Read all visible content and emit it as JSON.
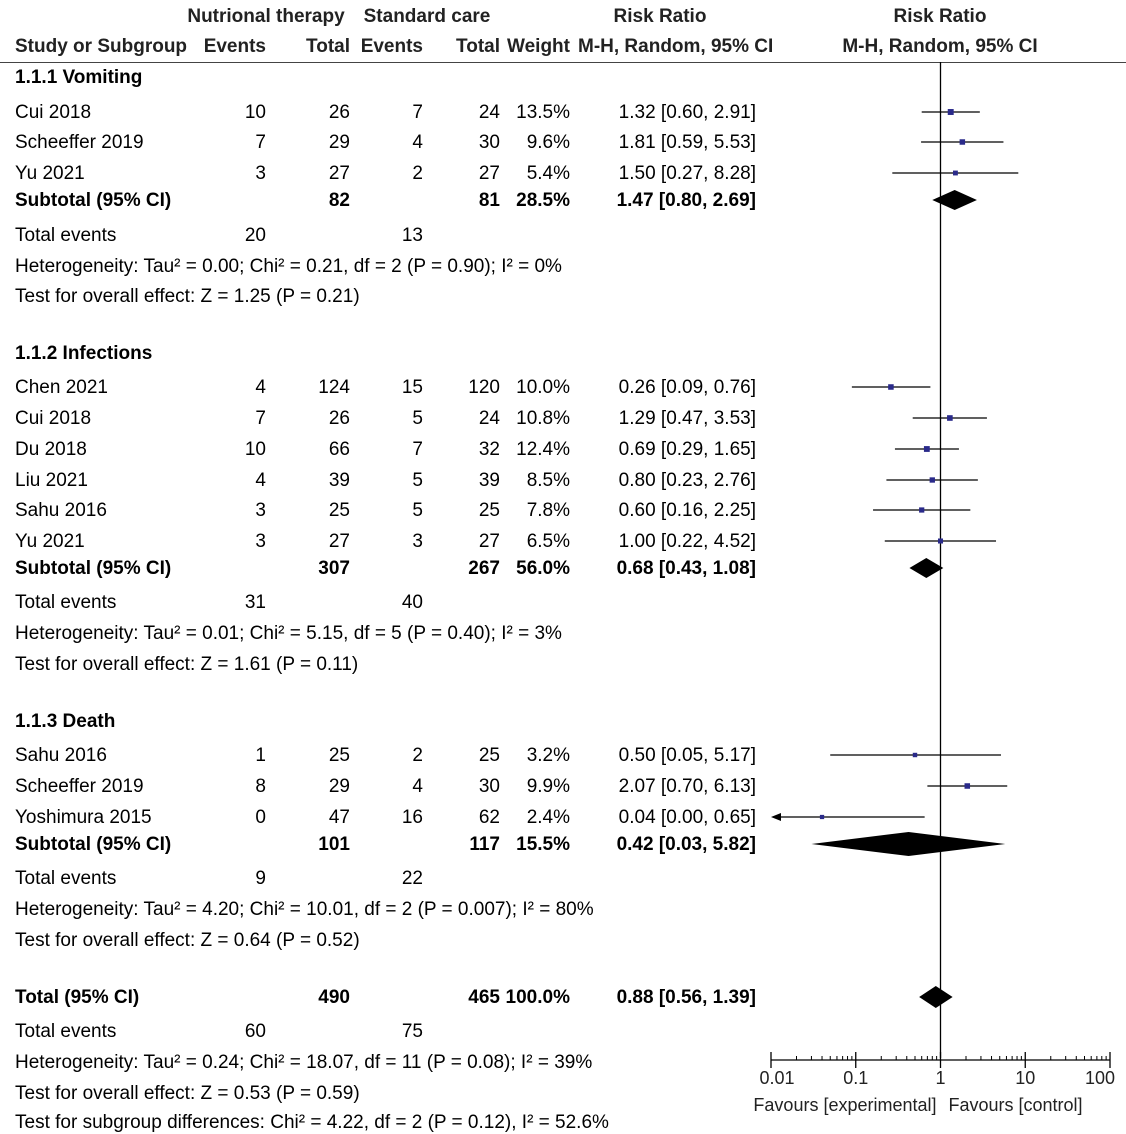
{
  "headers": {
    "group_experimental": "Nutrional therapy",
    "group_control": "Standard care",
    "risk_ratio_col": "Risk Ratio",
    "risk_ratio_plot": "Risk Ratio",
    "study": "Study or Subgroup",
    "events_e": "Events",
    "total_e": "Total",
    "events_c": "Events",
    "total_c": "Total",
    "weight": "Weight",
    "method_col": "M-H, Random, 95% CI",
    "method_plot": "M-H, Random, 95% CI"
  },
  "subgroups": [
    {
      "title": "1.1.1 Vomiting",
      "studies": [
        {
          "name": "Cui 2018",
          "ev_e": "10",
          "tot_e": "26",
          "ev_c": "7",
          "tot_c": "24",
          "weight": "13.5%",
          "ci": "1.32 [0.60, 2.91]"
        },
        {
          "name": "Scheeffer 2019",
          "ev_e": "7",
          "tot_e": "29",
          "ev_c": "4",
          "tot_c": "30",
          "weight": "9.6%",
          "ci": "1.81 [0.59, 5.53]"
        },
        {
          "name": "Yu 2021",
          "ev_e": "3",
          "tot_e": "27",
          "ev_c": "2",
          "tot_c": "27",
          "weight": "5.4%",
          "ci": "1.50 [0.27, 8.28]"
        }
      ],
      "subtotal": {
        "label": "Subtotal (95% CI)",
        "tot_e": "82",
        "tot_c": "81",
        "weight": "28.5%",
        "ci": "1.47 [0.80, 2.69]"
      },
      "events": {
        "label": "Total events",
        "ev_e": "20",
        "ev_c": "13"
      },
      "heterogeneity": "Heterogeneity: Tau² = 0.00; Chi² = 0.21, df = 2 (P = 0.90); I² = 0%",
      "overall": "Test for overall effect: Z = 1.25 (P = 0.21)"
    },
    {
      "title": "1.1.2 Infections",
      "studies": [
        {
          "name": "Chen 2021",
          "ev_e": "4",
          "tot_e": "124",
          "ev_c": "15",
          "tot_c": "120",
          "weight": "10.0%",
          "ci": "0.26 [0.09, 0.76]"
        },
        {
          "name": "Cui 2018",
          "ev_e": "7",
          "tot_e": "26",
          "ev_c": "5",
          "tot_c": "24",
          "weight": "10.8%",
          "ci": "1.29 [0.47, 3.53]"
        },
        {
          "name": "Du 2018",
          "ev_e": "10",
          "tot_e": "66",
          "ev_c": "7",
          "tot_c": "32",
          "weight": "12.4%",
          "ci": "0.69 [0.29, 1.65]"
        },
        {
          "name": "Liu 2021",
          "ev_e": "4",
          "tot_e": "39",
          "ev_c": "5",
          "tot_c": "39",
          "weight": "8.5%",
          "ci": "0.80 [0.23, 2.76]"
        },
        {
          "name": "Sahu 2016",
          "ev_e": "3",
          "tot_e": "25",
          "ev_c": "5",
          "tot_c": "25",
          "weight": "7.8%",
          "ci": "0.60 [0.16, 2.25]"
        },
        {
          "name": "Yu 2021",
          "ev_e": "3",
          "tot_e": "27",
          "ev_c": "3",
          "tot_c": "27",
          "weight": "6.5%",
          "ci": "1.00 [0.22, 4.52]"
        }
      ],
      "subtotal": {
        "label": "Subtotal (95% CI)",
        "tot_e": "307",
        "tot_c": "267",
        "weight": "56.0%",
        "ci": "0.68 [0.43, 1.08]"
      },
      "events": {
        "label": "Total events",
        "ev_e": "31",
        "ev_c": "40"
      },
      "heterogeneity": "Heterogeneity: Tau² = 0.01; Chi² = 5.15, df = 5 (P = 0.40); I² = 3%",
      "overall": "Test for overall effect: Z = 1.61 (P = 0.11)"
    },
    {
      "title": "1.1.3 Death",
      "studies": [
        {
          "name": "Sahu 2016",
          "ev_e": "1",
          "tot_e": "25",
          "ev_c": "2",
          "tot_c": "25",
          "weight": "3.2%",
          "ci": "0.50 [0.05, 5.17]"
        },
        {
          "name": "Scheeffer 2019",
          "ev_e": "8",
          "tot_e": "29",
          "ev_c": "4",
          "tot_c": "30",
          "weight": "9.9%",
          "ci": "2.07 [0.70, 6.13]"
        },
        {
          "name": "Yoshimura 2015",
          "ev_e": "0",
          "tot_e": "47",
          "ev_c": "16",
          "tot_c": "62",
          "weight": "2.4%",
          "ci": "0.04 [0.00, 0.65]"
        }
      ],
      "subtotal": {
        "label": "Subtotal (95% CI)",
        "tot_e": "101",
        "tot_c": "117",
        "weight": "15.5%",
        "ci": "0.42 [0.03, 5.82]"
      },
      "events": {
        "label": "Total events",
        "ev_e": "9",
        "ev_c": "22"
      },
      "heterogeneity": "Heterogeneity: Tau² = 4.20; Chi² = 10.01, df = 2 (P = 0.007); I² = 80%",
      "overall": "Test for overall effect: Z = 0.64 (P = 0.52)"
    }
  ],
  "total": {
    "label": "Total (95% CI)",
    "tot_e": "490",
    "tot_c": "465",
    "weight": "100.0%",
    "ci": "0.88 [0.56, 1.39]"
  },
  "total_events": {
    "label": "Total events",
    "ev_e": "60",
    "ev_c": "75"
  },
  "total_heterogeneity": "Heterogeneity: Tau² = 0.24; Chi² = 18.07, df = 11 (P = 0.08); I² = 39%",
  "total_overall": "Test for overall effect: Z = 0.53 (P = 0.59)",
  "subgroup_diff": "Test for subgroup differences: Chi² = 4.22, df = 2 (P = 0.12), I² = 52.6%",
  "chart_data": {
    "type": "forest",
    "title": "Risk Ratio",
    "xscale": "log",
    "xlim": [
      0.01,
      100
    ],
    "xticks": [
      0.01,
      0.1,
      1,
      10,
      100
    ],
    "xtick_labels": [
      "0.01",
      "0.1",
      "1",
      "10",
      "100"
    ],
    "xlabel_left": "Favours [experimental]",
    "xlabel_right": "Favours [control]",
    "marker_color": "#2a2a8a",
    "studies": [
      {
        "subgroup": "1.1.1 Vomiting",
        "name": "Cui 2018",
        "rr": 1.32,
        "lo": 0.6,
        "hi": 2.91,
        "weight": 13.5
      },
      {
        "subgroup": "1.1.1 Vomiting",
        "name": "Scheeffer 2019",
        "rr": 1.81,
        "lo": 0.59,
        "hi": 5.53,
        "weight": 9.6
      },
      {
        "subgroup": "1.1.1 Vomiting",
        "name": "Yu 2021",
        "rr": 1.5,
        "lo": 0.27,
        "hi": 8.28,
        "weight": 5.4
      },
      {
        "subgroup": "1.1.2 Infections",
        "name": "Chen 2021",
        "rr": 0.26,
        "lo": 0.09,
        "hi": 0.76,
        "weight": 10.0
      },
      {
        "subgroup": "1.1.2 Infections",
        "name": "Cui 2018",
        "rr": 1.29,
        "lo": 0.47,
        "hi": 3.53,
        "weight": 10.8
      },
      {
        "subgroup": "1.1.2 Infections",
        "name": "Du 2018",
        "rr": 0.69,
        "lo": 0.29,
        "hi": 1.65,
        "weight": 12.4
      },
      {
        "subgroup": "1.1.2 Infections",
        "name": "Liu 2021",
        "rr": 0.8,
        "lo": 0.23,
        "hi": 2.76,
        "weight": 8.5
      },
      {
        "subgroup": "1.1.2 Infections",
        "name": "Sahu 2016",
        "rr": 0.6,
        "lo": 0.16,
        "hi": 2.25,
        "weight": 7.8
      },
      {
        "subgroup": "1.1.2 Infections",
        "name": "Yu 2021",
        "rr": 1.0,
        "lo": 0.22,
        "hi": 4.52,
        "weight": 6.5
      },
      {
        "subgroup": "1.1.3 Death",
        "name": "Sahu 2016",
        "rr": 0.5,
        "lo": 0.05,
        "hi": 5.17,
        "weight": 3.2
      },
      {
        "subgroup": "1.1.3 Death",
        "name": "Scheeffer 2019",
        "rr": 2.07,
        "lo": 0.7,
        "hi": 6.13,
        "weight": 9.9
      },
      {
        "subgroup": "1.1.3 Death",
        "name": "Yoshimura 2015",
        "rr": 0.04,
        "lo": 0.0,
        "hi": 0.65,
        "weight": 2.4
      }
    ],
    "subtotals": [
      {
        "subgroup": "1.1.1 Vomiting",
        "rr": 1.47,
        "lo": 0.8,
        "hi": 2.69
      },
      {
        "subgroup": "1.1.2 Infections",
        "rr": 0.68,
        "lo": 0.43,
        "hi": 1.08
      },
      {
        "subgroup": "1.1.3 Death",
        "rr": 0.42,
        "lo": 0.03,
        "hi": 5.82
      }
    ],
    "overall": {
      "rr": 0.88,
      "lo": 0.56,
      "hi": 1.39
    }
  }
}
